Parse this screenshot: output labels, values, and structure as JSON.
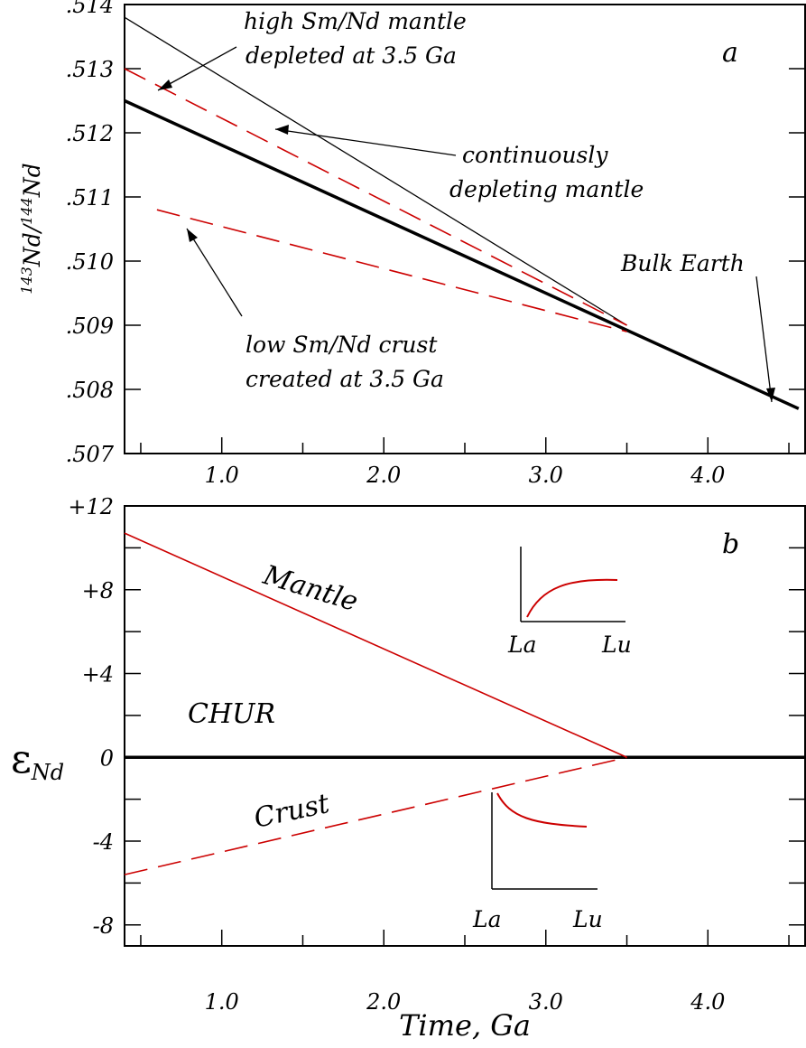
{
  "chart_data": [
    {
      "type": "line",
      "panel_label": "a",
      "ylabel_parts": {
        "sup1": "143",
        "main1": "Nd/",
        "sup2": "144",
        "main2": "Nd"
      },
      "xlim": [
        0.4,
        4.6
      ],
      "ylim": [
        0.507,
        0.514
      ],
      "xticks": [
        "1.0",
        "2.0",
        "3.0",
        "4.0"
      ],
      "yticks": [
        ".514",
        ".513",
        ".512",
        ".511",
        ".510",
        ".509",
        ".508",
        ".507"
      ],
      "series": [
        {
          "id": "bulk_earth",
          "color": "#000000",
          "style": "thick",
          "x": [
            0.4,
            4.56
          ],
          "y": [
            0.5125,
            0.5077
          ]
        },
        {
          "id": "continuously_depleting",
          "color": "#000000",
          "style": "thin",
          "x": [
            0.4,
            3.5
          ],
          "y": [
            0.5138,
            0.509
          ]
        },
        {
          "id": "high_smnd_mantle",
          "color": "#cc0000",
          "style": "dashed",
          "x": [
            0.4,
            3.5
          ],
          "y": [
            0.513,
            0.509
          ]
        },
        {
          "id": "low_smnd_crust",
          "color": "#cc0000",
          "style": "dashed",
          "x": [
            0.6,
            3.5
          ],
          "y": [
            0.5108,
            0.5089
          ]
        }
      ],
      "annotations": {
        "high_mantle_line1": "high Sm/Nd mantle",
        "high_mantle_line2": "depleted at 3.5 Ga",
        "continuous_line1": "continuously",
        "continuous_line2": "depleting mantle",
        "bulk_earth": "Bulk Earth",
        "crust_line1": "low Sm/Nd crust",
        "crust_line2": "created at 3.5 Ga"
      }
    },
    {
      "type": "line",
      "panel_label": "b",
      "ylabel_parts": {
        "main": "ε",
        "sub": "Nd"
      },
      "xlabel": "Time, Ga",
      "xlim": [
        0.4,
        4.6
      ],
      "ylim": [
        -9,
        12
      ],
      "xticks": [
        "1.0",
        "2.0",
        "3.0",
        "4.0"
      ],
      "yticks": [
        "+12",
        "+8",
        "+4",
        "0",
        "-4",
        "-8"
      ],
      "series": [
        {
          "id": "chur",
          "color": "#000000",
          "style": "thick",
          "x": [
            0.4,
            4.6
          ],
          "y": [
            0,
            0
          ]
        },
        {
          "id": "mantle",
          "color": "#cc0000",
          "style": "solid",
          "x": [
            0.4,
            3.5
          ],
          "y": [
            10.7,
            0
          ]
        },
        {
          "id": "crust",
          "color": "#cc0000",
          "style": "dashed",
          "x": [
            0.4,
            3.5
          ],
          "y": [
            -5.6,
            0
          ]
        }
      ],
      "annotations": {
        "mantle": "Mantle",
        "chur": "CHUR",
        "crust": "Crust"
      },
      "insets": [
        {
          "id": "mantle_ree_pattern",
          "shape": "rising",
          "x_labels": [
            "La",
            "Lu"
          ]
        },
        {
          "id": "crust_ree_pattern",
          "shape": "falling",
          "x_labels": [
            "La",
            "Lu"
          ]
        }
      ]
    }
  ]
}
